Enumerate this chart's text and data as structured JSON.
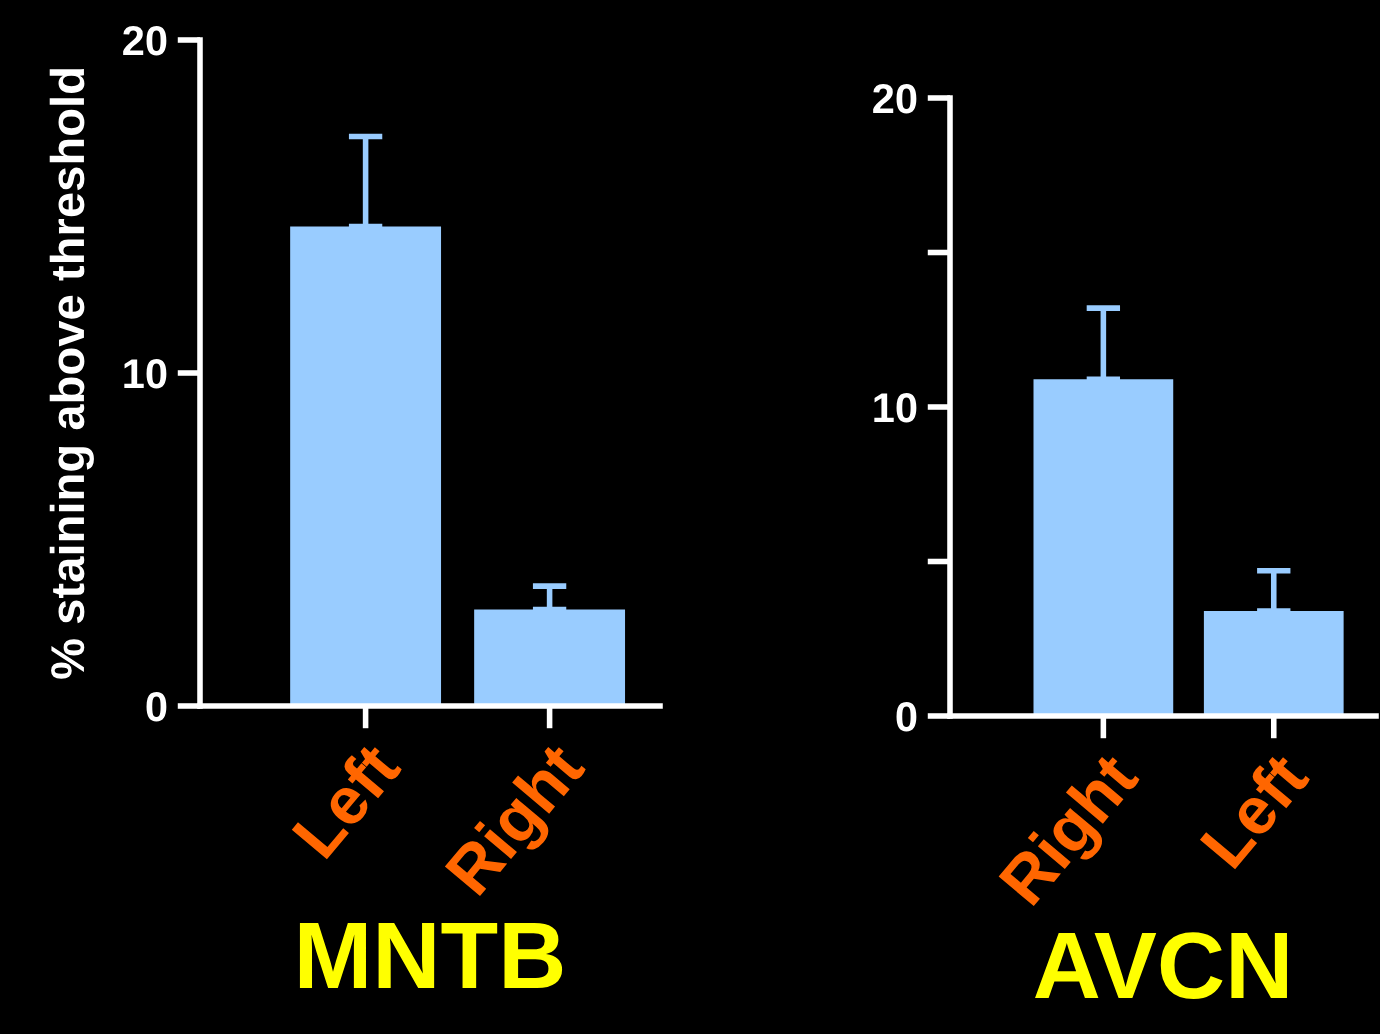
{
  "chart_data": [
    {
      "type": "bar",
      "xlabel": "MNTB",
      "ylabel": "% staining above threshold",
      "categories": [
        "Left",
        "Right"
      ],
      "values": [
        14.4,
        2.9
      ],
      "errors": [
        [
          14.4,
          17.1
        ],
        [
          2.9,
          3.6
        ]
      ],
      "color": "#99ccff",
      "ylim": [
        0,
        20
      ],
      "yticks": [
        0,
        10,
        20
      ],
      "grid": false
    },
    {
      "type": "bar",
      "xlabel": "AVCN",
      "categories": [
        "Right",
        "Left"
      ],
      "values": [
        10.9,
        3.4
      ],
      "errors": [
        [
          10.9,
          13.2
        ],
        [
          3.4,
          4.7
        ]
      ],
      "color": "#99ccff",
      "ylim": [
        0,
        20
      ],
      "yticks": [
        0,
        {
          "value": 5,
          "label": null
        },
        10,
        {
          "value": 15,
          "label": null
        },
        20
      ],
      "grid": false
    }
  ]
}
